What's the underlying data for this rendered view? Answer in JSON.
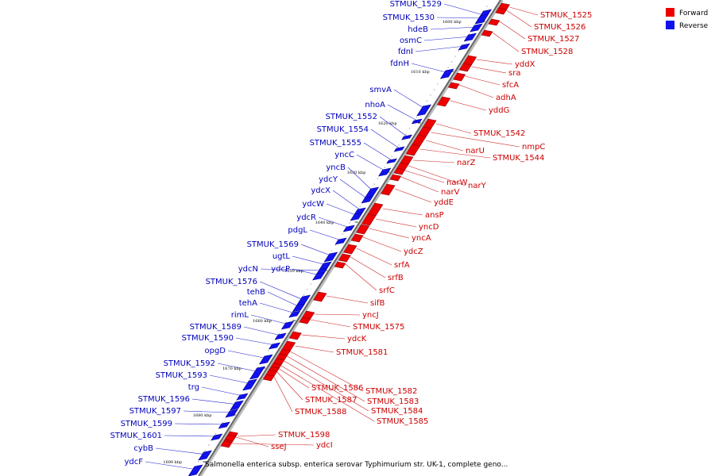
{
  "legend": [
    {
      "label": "Forward",
      "color": "#ee0000"
    },
    {
      "label": "Reverse",
      "color": "#1111ee"
    }
  ],
  "caption": "Salmonella enterica subsp. enterica serovar Typhimurium str. UK-1, complete geno...",
  "ticks": [
    "1600 kbp",
    "1610 kbp",
    "1620 kbp",
    "1630 kbp",
    "1640 kbp",
    "1650 kbp",
    "1660 kbp",
    "1670 kbp",
    "1680 kbp",
    "1690 kbp"
  ],
  "reverse_genes": [
    "STMUK_1529",
    "STMUK_1530",
    "hdeB",
    "osmC",
    "fdnI",
    "fdnH",
    "smvA",
    "nhoA",
    "STMUK_1552",
    "STMUK_1554",
    "STMUK_1555",
    "yncC",
    "yncB",
    "ydcY",
    "ydcX",
    "ydcW",
    "ydcR",
    "pdgL",
    "STMUK_1569",
    "ugtL",
    "ydcN",
    "ydcP",
    "STMUK_1576",
    "tehB",
    "tehA",
    "rimL",
    "STMUK_1589",
    "STMUK_1590",
    "opgD",
    "STMUK_1592",
    "STMUK_1593",
    "trg",
    "STMUK_1596",
    "STMUK_1597",
    "STMUK_1599",
    "STMUK_1601",
    "cybB",
    "ydcF"
  ],
  "forward_genes": [
    "STMUK_1525",
    "STMUK_1526",
    "STMUK_1527",
    "STMUK_1528",
    "yddX",
    "sra",
    "sfcA",
    "adhA",
    "yddG",
    "STMUK_1542",
    "nmpC",
    "narU",
    "STMUK_1544",
    "narZ",
    "narY",
    "narW",
    "narV",
    "yddE",
    "ansP",
    "yncD",
    "yncA",
    "ydcZ",
    "srfA",
    "srfB",
    "srfC",
    "sifB",
    "yncJ",
    "STMUK_1575",
    "ydcK",
    "STMUK_1581",
    "STMUK_1582",
    "STMUK_1583",
    "STMUK_1584",
    "STMUK_1585",
    "STMUK_1586",
    "STMUK_1587",
    "STMUK_1588",
    "STMUK_1598",
    "sseJ",
    "ydcI"
  ]
}
